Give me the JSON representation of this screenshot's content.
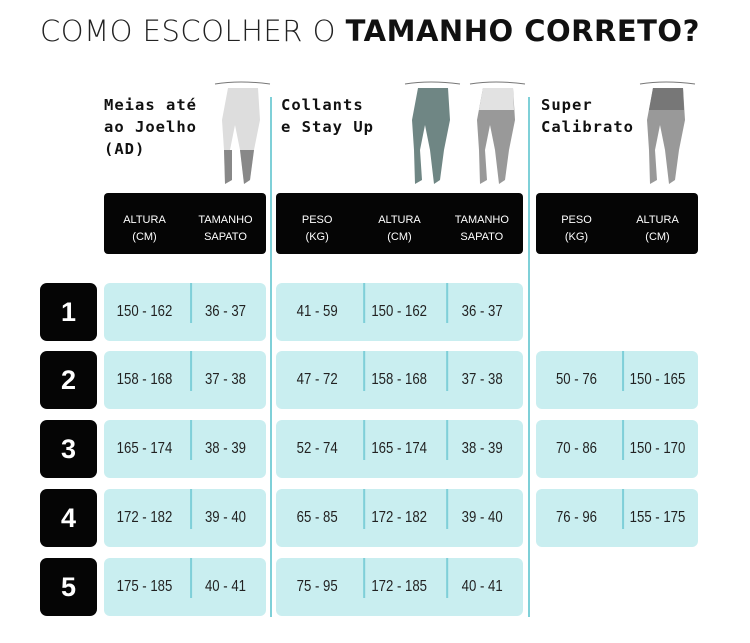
{
  "title": {
    "regular": "COMO ESCOLHER O ",
    "bold": "TAMANHO CORRETO?"
  },
  "groups": [
    {
      "title_lines": [
        "Meias até",
        "ao Joelho",
        "(AD)"
      ],
      "headers": [
        [
          "ALTURA",
          "(CM)"
        ],
        [
          "TAMANHO",
          "SAPATO"
        ]
      ],
      "rows": [
        [
          "150 - 162",
          "36 - 37"
        ],
        [
          "158 - 168",
          "37 - 38"
        ],
        [
          "165 - 174",
          "38 - 39"
        ],
        [
          "172 - 182",
          "39 - 40"
        ],
        [
          "175 - 185",
          "40 - 41"
        ]
      ]
    },
    {
      "title_lines": [
        "Collants",
        "e Stay Up"
      ],
      "headers": [
        [
          "PESO",
          "(KG)"
        ],
        [
          "ALTURA",
          "(CM)"
        ],
        [
          "TAMANHO",
          "SAPATO"
        ]
      ],
      "rows": [
        [
          "41 - 59",
          "150 - 162",
          "36 - 37"
        ],
        [
          "47 - 72",
          "158 - 168",
          "37 - 38"
        ],
        [
          "52 - 74",
          "165 - 174",
          "38 - 39"
        ],
        [
          "65 - 85",
          "172 - 182",
          "39 - 40"
        ],
        [
          "75 - 95",
          "172 - 185",
          "40 - 41"
        ]
      ]
    },
    {
      "title_lines": [
        "Super",
        "Calibrato"
      ],
      "headers": [
        [
          "PESO",
          "(KG)"
        ],
        [
          "ALTURA",
          "(CM)"
        ]
      ],
      "rows": [
        null,
        [
          "50 - 76",
          "150 - 165"
        ],
        [
          "70 - 86",
          "150 - 170"
        ],
        [
          "76 - 96",
          "155 - 175"
        ],
        null
      ]
    }
  ],
  "sizes": [
    "1",
    "2",
    "3",
    "4",
    "5"
  ],
  "colors": {
    "cell": "#c9eef0",
    "divider": "#7fd0d8",
    "header": "#050505"
  }
}
